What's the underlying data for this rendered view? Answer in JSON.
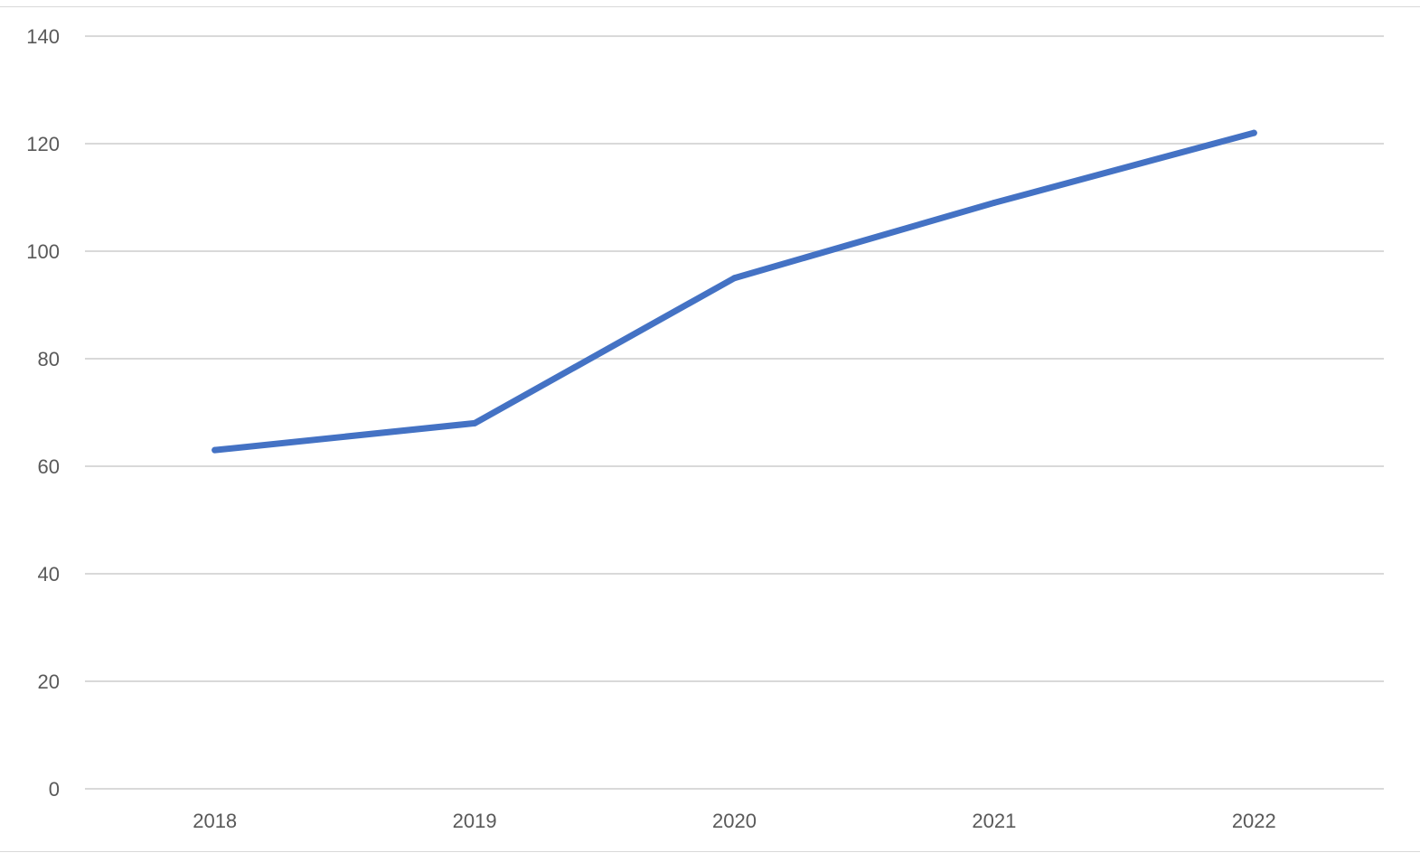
{
  "chart_data": {
    "type": "line",
    "title": "",
    "xlabel": "",
    "ylabel": "",
    "categories": [
      "2018",
      "2019",
      "2020",
      "2021",
      "2022"
    ],
    "series": [
      {
        "values": [
          63,
          68,
          95,
          109,
          122
        ],
        "color": "#4472c4"
      }
    ],
    "ylim": [
      0,
      140
    ],
    "yticks": [
      0,
      20,
      40,
      60,
      80,
      100,
      120,
      140
    ],
    "grid": true,
    "legend": "none"
  },
  "colors": {
    "gridline": "#d9d9d9",
    "tick_text": "#595959",
    "series_line": "#4472c4"
  }
}
